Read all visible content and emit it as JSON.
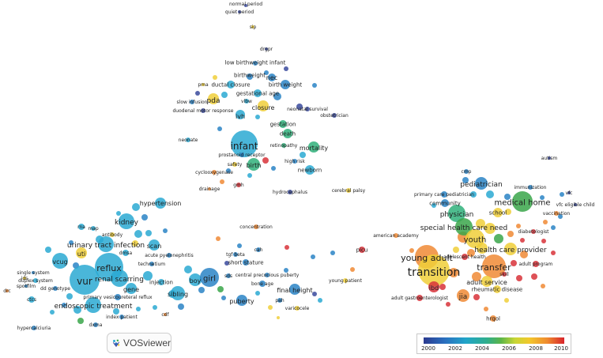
{
  "app": {
    "name": "VOSviewer"
  },
  "legend": {
    "ticks": [
      "2000",
      "2002",
      "2004",
      "2006",
      "2008",
      "2010"
    ],
    "gradient_colors": [
      "#2b3a8f",
      "#21a5c9",
      "#5cb548",
      "#f2c82c",
      "#d7242b"
    ]
  },
  "colors": {
    "blue_dark": "#3a4a9c",
    "blue": "#2a84c6",
    "cyan": "#2aa9d2",
    "teal": "#2fb07a",
    "green": "#3aa64a",
    "yellow": "#f0cf3a",
    "orange": "#f08a35",
    "red": "#d8333a"
  },
  "terms": [
    {
      "label": "normal period",
      "c": "blue_dark"
    },
    {
      "label": "quiet period",
      "c": "blue_dark"
    },
    {
      "label": "sip",
      "c": "yellow"
    },
    {
      "label": "drgpr",
      "c": "blue_dark"
    },
    {
      "label": "low birthweight infant",
      "c": "blue"
    },
    {
      "label": "birthweight",
      "c": "blue"
    },
    {
      "label": "nec",
      "c": "blue"
    },
    {
      "label": "ductal closure",
      "c": "cyan"
    },
    {
      "label": "birth weight",
      "c": "blue"
    },
    {
      "label": "pma",
      "c": "yellow"
    },
    {
      "label": "gestational age",
      "c": "cyan"
    },
    {
      "label": "pda",
      "c": "yellow"
    },
    {
      "label": "vlbw",
      "c": "cyan"
    },
    {
      "label": "slow infusion",
      "c": "blue"
    },
    {
      "label": "closure",
      "c": "yellow"
    },
    {
      "label": "neonatal survival",
      "c": "blue_dark"
    },
    {
      "label": "duodenal motor response",
      "c": "blue_dark"
    },
    {
      "label": "ivh",
      "c": "cyan"
    },
    {
      "label": "obstetrician",
      "c": "blue_dark"
    },
    {
      "label": "gestation",
      "c": "teal"
    },
    {
      "label": "death",
      "c": "teal"
    },
    {
      "label": "neonate",
      "c": "cyan"
    },
    {
      "label": "infant",
      "c": "cyan"
    },
    {
      "label": "retinopathy",
      "c": "teal"
    },
    {
      "label": "mortality",
      "c": "teal"
    },
    {
      "label": "prostanoid receptor",
      "c": "blue"
    },
    {
      "label": "high risk",
      "c": "blue"
    },
    {
      "label": "safety",
      "c": "yellow"
    },
    {
      "label": "birth",
      "c": "teal"
    },
    {
      "label": "newborn",
      "c": "cyan"
    },
    {
      "label": "cyclooxygenase",
      "c": "orange"
    },
    {
      "label": "drainage",
      "c": "orange"
    },
    {
      "label": "gmh",
      "c": "red"
    },
    {
      "label": "hydrocephalus",
      "c": "blue_dark"
    },
    {
      "label": "cerebral palsy",
      "c": "yellow"
    },
    {
      "label": "hypertension",
      "c": "cyan"
    },
    {
      "label": "kidney",
      "c": "cyan"
    },
    {
      "label": "concentration",
      "c": "orange"
    },
    {
      "label": "rna",
      "c": "cyan"
    },
    {
      "label": "map",
      "c": "cyan"
    },
    {
      "label": "antibody",
      "c": "yellow"
    },
    {
      "label": "urinary tract infection",
      "c": "cyan"
    },
    {
      "label": "scan",
      "c": "cyan"
    },
    {
      "label": "acute pyelonephritis",
      "c": "blue"
    },
    {
      "label": "technetium",
      "c": "blue"
    },
    {
      "label": "dmsa",
      "c": "cyan"
    },
    {
      "label": "vcug",
      "c": "cyan"
    },
    {
      "label": "uti",
      "c": "yellow"
    },
    {
      "label": "reflux",
      "c": "cyan"
    },
    {
      "label": "vur",
      "c": "cyan"
    },
    {
      "label": "renal scarring",
      "c": "cyan"
    },
    {
      "label": "gene",
      "c": "cyan"
    },
    {
      "label": "injection",
      "c": "cyan"
    },
    {
      "label": "sibling",
      "c": "cyan"
    },
    {
      "label": "boy",
      "c": "cyan"
    },
    {
      "label": "girl",
      "c": "blue"
    },
    {
      "label": "primary vesicoureteral reflux",
      "c": "blue"
    },
    {
      "label": "endoscopic treatment",
      "c": "cyan"
    },
    {
      "label": "index patient",
      "c": "blue"
    },
    {
      "label": "cdf",
      "c": "orange"
    },
    {
      "label": "dxma",
      "c": "blue"
    },
    {
      "label": "single system",
      "c": "blue"
    },
    {
      "label": "ids",
      "c": "yellow"
    },
    {
      "label": "duplex system",
      "c": "cyan"
    },
    {
      "label": "dd genotype",
      "c": "blue"
    },
    {
      "label": "spotfilm",
      "c": "blue"
    },
    {
      "label": "drc",
      "c": "orange"
    },
    {
      "label": "ctcs",
      "c": "cyan"
    },
    {
      "label": "hypercalciuria",
      "c": "blue"
    },
    {
      "label": "tgf beta",
      "c": "blue"
    },
    {
      "label": "cah",
      "c": "blue"
    },
    {
      "label": "short stature",
      "c": "blue"
    },
    {
      "label": "sds",
      "c": "blue"
    },
    {
      "label": "central precocious puberty",
      "c": "blue"
    },
    {
      "label": "bone age",
      "c": "blue"
    },
    {
      "label": "final height",
      "c": "blue"
    },
    {
      "label": "puberty",
      "c": "blue"
    },
    {
      "label": "pah",
      "c": "blue"
    },
    {
      "label": "varicocele",
      "c": "yellow"
    },
    {
      "label": "young patient",
      "c": "yellow"
    },
    {
      "label": "picu",
      "c": "red"
    },
    {
      "label": "american academy",
      "c": "orange"
    },
    {
      "label": "autism",
      "c": "blue_dark"
    },
    {
      "label": "cmp",
      "c": "blue"
    },
    {
      "label": "pediatrician",
      "c": "blue"
    },
    {
      "label": "immunization",
      "c": "blue"
    },
    {
      "label": "primary care pediatrician",
      "c": "blue"
    },
    {
      "label": "vfc",
      "c": "blue_dark"
    },
    {
      "label": "community",
      "c": "blue"
    },
    {
      "label": "vfc eligible child",
      "c": "blue_dark"
    },
    {
      "label": "medical home",
      "c": "green"
    },
    {
      "label": "physician",
      "c": "teal"
    },
    {
      "label": "school",
      "c": "yellow"
    },
    {
      "label": "vaccination",
      "c": "orange"
    },
    {
      "label": "special health care need",
      "c": "green"
    },
    {
      "label": "diabetologist",
      "c": "red"
    },
    {
      "label": "youth",
      "c": "yellow"
    },
    {
      "label": "health care provider",
      "c": "yellow"
    },
    {
      "label": "young adult",
      "c": "orange"
    },
    {
      "label": "adolescent health",
      "c": "red"
    },
    {
      "label": "transfer",
      "c": "orange"
    },
    {
      "label": "adult program",
      "c": "red"
    },
    {
      "label": "transition",
      "c": "yellow"
    },
    {
      "label": "skill",
      "c": "red"
    },
    {
      "label": "ibd",
      "c": "red"
    },
    {
      "label": "adult service",
      "c": "yellow"
    },
    {
      "label": "rheumatic disease",
      "c": "yellow"
    },
    {
      "label": "jia",
      "c": "orange"
    },
    {
      "label": "adult gastroenterologist",
      "c": "red"
    },
    {
      "label": "hrqol",
      "c": "orange"
    }
  ]
}
